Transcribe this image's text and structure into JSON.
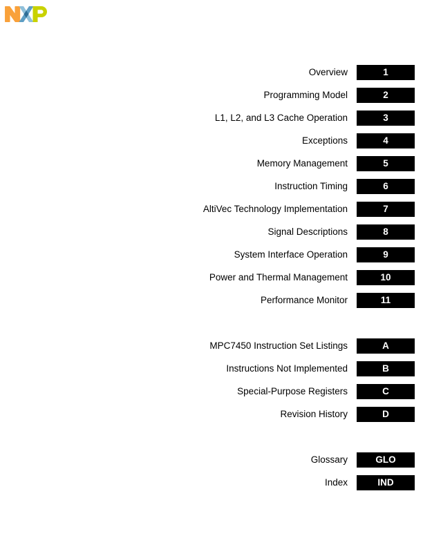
{
  "page": {
    "background": "#ffffff"
  },
  "logo": {
    "name": "NXP",
    "colors": {
      "n_orange": "#F9A13A",
      "x_light_blue": "#8FC0DA",
      "x_mid_blue": "#5E9EC4",
      "x_dark_blue": "#2F6E96",
      "p_lime": "#C9D200"
    }
  },
  "toc": {
    "tab_bg": "#000000",
    "tab_text_color": "#ffffff",
    "label_color": "#000000",
    "sections": [
      {
        "id": "chapters",
        "items": [
          {
            "label": "Overview",
            "tab": "1"
          },
          {
            "label": "Programming Model",
            "tab": "2"
          },
          {
            "label": "L1, L2, and L3 Cache Operation",
            "tab": "3"
          },
          {
            "label": "Exceptions",
            "tab": "4"
          },
          {
            "label": "Memory Management",
            "tab": "5"
          },
          {
            "label": "Instruction Timing",
            "tab": "6"
          },
          {
            "label": "AltiVec Technology Implementation",
            "tab": "7"
          },
          {
            "label": "Signal Descriptions",
            "tab": "8"
          },
          {
            "label": "System Interface Operation",
            "tab": "9"
          },
          {
            "label": "Power and Thermal Management",
            "tab": "10"
          },
          {
            "label": "Performance Monitor",
            "tab": "11"
          }
        ]
      },
      {
        "id": "appendices",
        "items": [
          {
            "label": "MPC7450 Instruction Set Listings",
            "tab": "A"
          },
          {
            "label": "Instructions Not Implemented",
            "tab": "B"
          },
          {
            "label": "Special-Purpose Registers",
            "tab": "C"
          },
          {
            "label": "Revision History",
            "tab": "D"
          }
        ]
      },
      {
        "id": "back-matter",
        "items": [
          {
            "label": "Glossary",
            "tab": "GLO"
          },
          {
            "label": "Index",
            "tab": "IND"
          }
        ]
      }
    ]
  }
}
